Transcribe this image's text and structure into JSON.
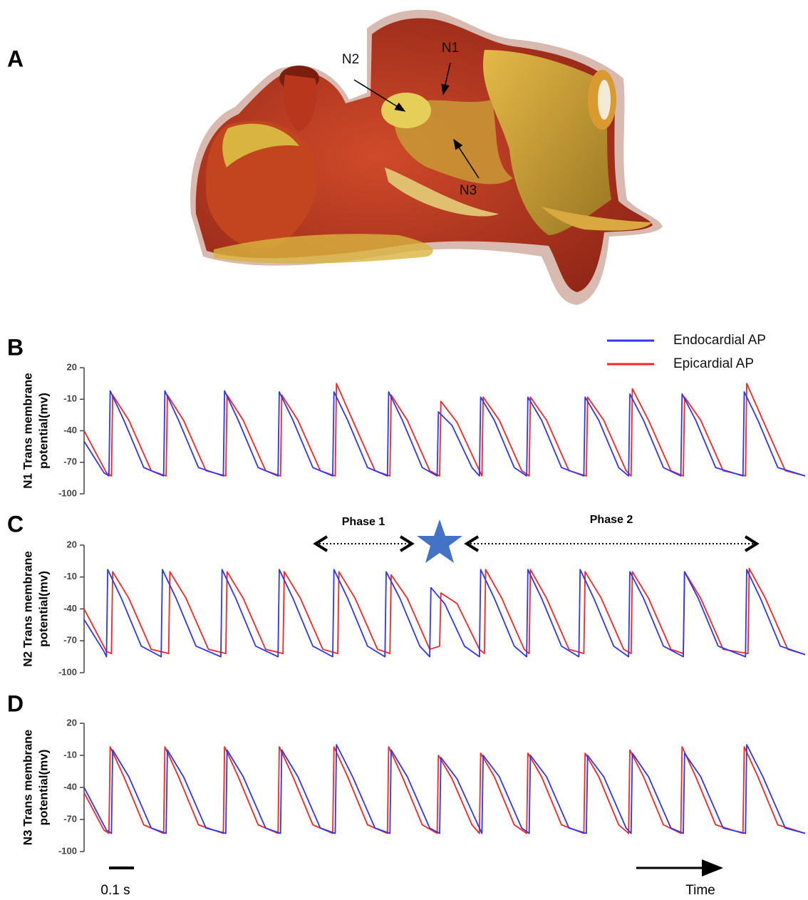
{
  "panel_a": {
    "label": "A",
    "nodes": [
      "N1",
      "N2",
      "N3"
    ]
  },
  "chart_data": [
    {
      "type": "line",
      "label": "B",
      "ylabel": [
        "N1 Trans membrane",
        "potential(mv)"
      ],
      "xlim": [
        0,
        2.9
      ],
      "ylim": [
        -100,
        20
      ],
      "yticks": [
        -100,
        -70,
        -40,
        -10,
        20
      ],
      "legend": "top-right",
      "series": [
        {
          "name": "Endocardial AP",
          "color": "#2f36f0",
          "x": [
            0,
            0.08,
            0.1,
            0.105,
            0.16,
            0.24,
            0.32,
            0.325,
            0.38,
            0.46,
            0.56,
            0.565,
            0.62,
            0.7,
            0.78,
            0.785,
            0.84,
            0.92,
            1.0,
            1.005,
            1.06,
            1.14,
            1.22,
            1.225,
            1.28,
            1.36,
            1.42,
            1.425,
            1.48,
            1.56,
            1.59,
            1.595,
            1.65,
            1.73,
            1.78,
            1.785,
            1.84,
            1.92,
            2.01,
            2.015,
            2.07,
            2.15,
            2.19,
            2.195,
            2.25,
            2.33,
            2.4,
            2.405,
            2.46,
            2.54,
            2.65,
            2.655,
            2.71,
            2.79,
            2.9
          ],
          "values": [
            -50,
            -80,
            -83,
            -2,
            -30,
            -75,
            -83,
            -2,
            -30,
            -75,
            -83,
            -2,
            -30,
            -75,
            -83,
            -3,
            -30,
            -75,
            -83,
            -3,
            -30,
            -75,
            -83,
            -3,
            -30,
            -75,
            -83,
            -22,
            -35,
            -75,
            -83,
            -8,
            -30,
            -75,
            -83,
            -8,
            -30,
            -75,
            -83,
            -8,
            -30,
            -75,
            -83,
            -5,
            -30,
            -75,
            -83,
            -5,
            -30,
            -75,
            -83,
            -3,
            -30,
            -75,
            -83
          ]
        },
        {
          "name": "Epicardial AP",
          "color": "#ff2424",
          "x": [
            0,
            0.09,
            0.11,
            0.115,
            0.18,
            0.27,
            0.33,
            0.335,
            0.4,
            0.49,
            0.57,
            0.575,
            0.64,
            0.73,
            0.79,
            0.795,
            0.86,
            0.95,
            1.01,
            1.015,
            1.08,
            1.17,
            1.23,
            1.235,
            1.3,
            1.39,
            1.43,
            1.435,
            1.5,
            1.59,
            1.6,
            1.605,
            1.67,
            1.76,
            1.79,
            1.795,
            1.86,
            1.95,
            2.02,
            2.025,
            2.09,
            2.18,
            2.2,
            2.205,
            2.27,
            2.36,
            2.41,
            2.415,
            2.48,
            2.57,
            2.66,
            2.665,
            2.73,
            2.82,
            2.9
          ],
          "values": [
            -40,
            -80,
            -83,
            -6,
            -30,
            -78,
            -83,
            -6,
            -30,
            -78,
            -83,
            -6,
            -30,
            -78,
            -83,
            -6,
            -30,
            -78,
            -83,
            5,
            -30,
            -78,
            -83,
            -6,
            -30,
            -78,
            -83,
            -12,
            -32,
            -78,
            -83,
            -8,
            -30,
            -78,
            -83,
            -8,
            -30,
            -78,
            -83,
            -8,
            -30,
            -78,
            -83,
            0,
            -30,
            -78,
            -83,
            -8,
            -30,
            -78,
            -83,
            5,
            -30,
            -78,
            -83
          ]
        }
      ]
    },
    {
      "type": "line",
      "label": "C",
      "ylabel": [
        "N2 Trans membrane",
        "potential(mv)"
      ],
      "xlim": [
        0,
        2.9
      ],
      "ylim": [
        -100,
        20
      ],
      "yticks": [
        -100,
        -70,
        -40,
        -10,
        20
      ],
      "annotations": [
        "Phase 1",
        "Phase 2"
      ],
      "series": [
        {
          "name": "Endocardial AP",
          "color": "#2f36f0",
          "x": [
            0,
            0.08,
            0.09,
            0.095,
            0.15,
            0.23,
            0.31,
            0.315,
            0.37,
            0.45,
            0.55,
            0.555,
            0.61,
            0.69,
            0.78,
            0.785,
            0.84,
            0.92,
            1.0,
            1.005,
            1.06,
            1.14,
            1.21,
            1.215,
            1.27,
            1.35,
            1.39,
            1.395,
            1.45,
            1.53,
            1.59,
            1.595,
            1.65,
            1.73,
            1.78,
            1.785,
            1.84,
            1.92,
            1.99,
            1.995,
            2.05,
            2.13,
            2.19,
            2.195,
            2.25,
            2.33,
            2.41,
            2.415,
            2.47,
            2.55,
            2.66,
            2.665,
            2.72,
            2.8,
            2.9
          ],
          "values": [
            -50,
            -80,
            -85,
            -3,
            -30,
            -75,
            -85,
            -3,
            -30,
            -75,
            -85,
            -3,
            -30,
            -75,
            -85,
            -3,
            -30,
            -75,
            -85,
            -3,
            -30,
            -75,
            -85,
            -5,
            -30,
            -75,
            -85,
            -20,
            -35,
            -75,
            -85,
            -3,
            -30,
            -75,
            -85,
            -3,
            -30,
            -75,
            -85,
            -3,
            -30,
            -75,
            -85,
            -5,
            -30,
            -75,
            -85,
            -5,
            -30,
            -75,
            -85,
            -3,
            -30,
            -75,
            -83
          ]
        },
        {
          "name": "Epicardial AP",
          "color": "#ff2424",
          "x": [
            0,
            0.09,
            0.11,
            0.115,
            0.18,
            0.27,
            0.34,
            0.345,
            0.41,
            0.5,
            0.57,
            0.575,
            0.64,
            0.73,
            0.8,
            0.805,
            0.87,
            0.96,
            1.02,
            1.025,
            1.09,
            1.18,
            1.23,
            1.235,
            1.3,
            1.39,
            1.43,
            1.435,
            1.5,
            1.59,
            1.61,
            1.615,
            1.68,
            1.77,
            1.79,
            1.795,
            1.86,
            1.95,
            2.01,
            2.015,
            2.08,
            2.17,
            2.2,
            2.205,
            2.27,
            2.36,
            2.41,
            2.415,
            2.48,
            2.57,
            2.67,
            2.675,
            2.74,
            2.83,
            2.9
          ],
          "values": [
            -40,
            -80,
            -82,
            -5,
            -30,
            -78,
            -82,
            -5,
            -30,
            -78,
            -82,
            -5,
            -30,
            -78,
            -82,
            -5,
            -30,
            -78,
            -82,
            -5,
            -30,
            -78,
            -82,
            -8,
            -30,
            -78,
            -75,
            -25,
            -35,
            -78,
            -82,
            -3,
            -30,
            -78,
            -82,
            -3,
            -30,
            -78,
            -82,
            -5,
            -30,
            -78,
            -82,
            -5,
            -30,
            -78,
            -82,
            -5,
            -30,
            -78,
            -82,
            -2,
            -30,
            -78,
            -83
          ]
        }
      ]
    },
    {
      "type": "line",
      "label": "D",
      "ylabel": [
        "N3 Trans membrane",
        "potential(mv)"
      ],
      "xlim": [
        0,
        2.9
      ],
      "ylim": [
        -100,
        20
      ],
      "yticks": [
        -100,
        -70,
        -40,
        -10,
        20
      ],
      "series": [
        {
          "name": "Endocardial AP",
          "color": "#2f36f0",
          "x": [
            0,
            0.09,
            0.11,
            0.115,
            0.18,
            0.27,
            0.33,
            0.335,
            0.4,
            0.49,
            0.57,
            0.575,
            0.64,
            0.73,
            0.79,
            0.795,
            0.86,
            0.95,
            1.01,
            1.015,
            1.08,
            1.17,
            1.23,
            1.235,
            1.3,
            1.39,
            1.43,
            1.435,
            1.5,
            1.59,
            1.6,
            1.605,
            1.67,
            1.76,
            1.79,
            1.795,
            1.86,
            1.95,
            2.02,
            2.025,
            2.09,
            2.18,
            2.2,
            2.205,
            2.27,
            2.36,
            2.41,
            2.415,
            2.48,
            2.57,
            2.66,
            2.665,
            2.73,
            2.82,
            2.9
          ],
          "values": [
            -40,
            -80,
            -83,
            -5,
            -30,
            -78,
            -83,
            -5,
            -30,
            -78,
            -83,
            -5,
            -30,
            -78,
            -83,
            -5,
            -30,
            -78,
            -83,
            0,
            -30,
            -78,
            -83,
            -5,
            -30,
            -78,
            -83,
            -12,
            -32,
            -78,
            -83,
            -10,
            -30,
            -78,
            -83,
            -10,
            -30,
            -78,
            -83,
            -10,
            -30,
            -78,
            -83,
            -8,
            -30,
            -78,
            -83,
            -8,
            -30,
            -78,
            -83,
            0,
            -30,
            -78,
            -83
          ]
        },
        {
          "name": "Epicardial AP",
          "color": "#ff2424",
          "x": [
            0,
            0.08,
            0.1,
            0.105,
            0.16,
            0.24,
            0.32,
            0.325,
            0.38,
            0.46,
            0.56,
            0.565,
            0.62,
            0.7,
            0.78,
            0.785,
            0.84,
            0.92,
            1.0,
            1.005,
            1.06,
            1.14,
            1.22,
            1.225,
            1.28,
            1.36,
            1.42,
            1.425,
            1.48,
            1.56,
            1.59,
            1.595,
            1.65,
            1.73,
            1.78,
            1.785,
            1.84,
            1.92,
            2.01,
            2.015,
            2.07,
            2.15,
            2.19,
            2.195,
            2.25,
            2.33,
            2.4,
            2.405,
            2.46,
            2.54,
            2.65,
            2.655,
            2.71,
            2.79,
            2.9
          ],
          "values": [
            -45,
            -80,
            -83,
            -2,
            -30,
            -75,
            -83,
            -2,
            -30,
            -75,
            -83,
            -2,
            -30,
            -75,
            -83,
            -2,
            -30,
            -75,
            -83,
            -2,
            -30,
            -75,
            -83,
            -2,
            -30,
            -75,
            -83,
            -10,
            -32,
            -75,
            -83,
            -8,
            -30,
            -75,
            -83,
            -8,
            -30,
            -75,
            -83,
            -8,
            -30,
            -75,
            -83,
            -5,
            -30,
            -75,
            -83,
            -2,
            -30,
            -75,
            -83,
            -2,
            -30,
            -75,
            -83
          ]
        }
      ]
    }
  ],
  "scale_bar": "0.1 s",
  "time_label": "Time"
}
